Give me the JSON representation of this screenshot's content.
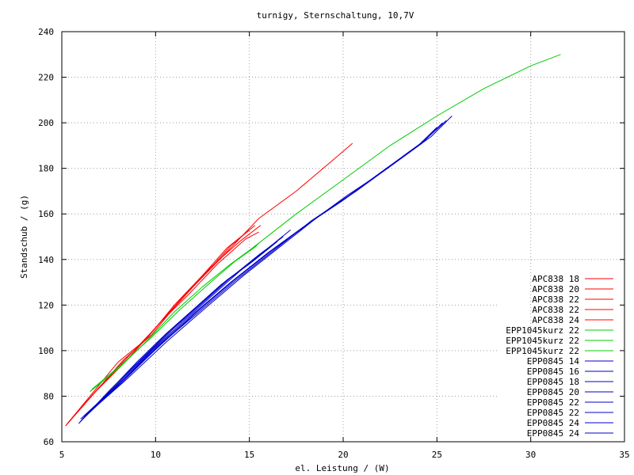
{
  "chart_data": {
    "type": "line",
    "title": "turnigy, Sternschaltung, 10,7V",
    "xlabel": "el. Leistung / (W)",
    "ylabel": "Standschub / (g)",
    "xlim": [
      5,
      35
    ],
    "ylim": [
      60,
      240
    ],
    "xticks": [
      5,
      10,
      15,
      20,
      25,
      30,
      35
    ],
    "yticks": [
      60,
      80,
      100,
      120,
      140,
      160,
      180,
      200,
      220,
      240
    ],
    "grid": true,
    "legend_position": "bottom-right",
    "colors": {
      "APC": "#ff0000",
      "EPP1045kurz": "#00cc00",
      "EPP0845": "#0000cc"
    },
    "series": [
      {
        "name": "APC838 18",
        "color": "#ff0000",
        "x": [
          5.2,
          6.5,
          8.0,
          9.5,
          11.0,
          12.5,
          13.8,
          15.0
        ],
        "y": [
          67,
          80,
          95,
          105,
          120,
          133,
          145,
          153
        ]
      },
      {
        "name": "APC838 20",
        "color": "#ff0000",
        "x": [
          5.3,
          6.8,
          8.3,
          9.8,
          11.3,
          12.8,
          14.0,
          15.3
        ],
        "y": [
          68,
          82,
          96,
          107,
          122,
          135,
          146,
          155
        ]
      },
      {
        "name": "APC838 22",
        "color": "#ff0000",
        "x": [
          5.4,
          7.0,
          8.5,
          10.0,
          11.5,
          13.0,
          14.5,
          15.6
        ],
        "y": [
          69,
          84,
          97,
          110,
          124,
          137,
          148,
          155
        ]
      },
      {
        "name": "APC838 22",
        "color": "#ff0000",
        "x": [
          5.3,
          6.9,
          8.6,
          10.2,
          11.8,
          13.3,
          14.8,
          15.5
        ],
        "y": [
          68,
          83,
          97,
          112,
          125,
          138,
          149,
          152
        ]
      },
      {
        "name": "APC838 24",
        "color": "#ff0000",
        "x": [
          5.2,
          6.8,
          8.5,
          10.0,
          12.0,
          14.0,
          15.5,
          17.5,
          19.5,
          20.5
        ],
        "y": [
          67,
          82,
          96,
          110,
          128,
          145,
          158,
          170,
          184,
          191
        ]
      },
      {
        "name": "EPP1045kurz 22",
        "color": "#00cc00",
        "x": [
          6.5,
          8.0,
          9.5,
          11.0,
          12.5,
          14.0,
          15.5
        ],
        "y": [
          82,
          92,
          104,
          117,
          128,
          138,
          147
        ]
      },
      {
        "name": "EPP1045kurz 22",
        "color": "#00cc00",
        "x": [
          6.6,
          8.2,
          9.8,
          11.3,
          12.8,
          14.2,
          15.4
        ],
        "y": [
          83,
          94,
          106,
          118,
          129,
          139,
          146
        ]
      },
      {
        "name": "EPP1045kurz 22",
        "color": "#00cc00",
        "x": [
          15.0,
          17.5,
          20.0,
          22.5,
          25.0,
          27.5,
          30.0,
          31.6
        ],
        "y": [
          144,
          160,
          175,
          190,
          203,
          215,
          225,
          230
        ]
      },
      {
        "name": "EPP0845 14",
        "color": "#0000cc",
        "x": [
          5.9,
          7.5,
          9.0,
          10.5,
          12.0,
          13.5,
          15.0,
          16.2
        ],
        "y": [
          68,
          82,
          95,
          107,
          118,
          129,
          138,
          146
        ]
      },
      {
        "name": "EPP0845 16",
        "color": "#0000cc",
        "x": [
          6.0,
          7.6,
          9.2,
          10.8,
          12.3,
          13.8,
          15.3,
          16.5
        ],
        "y": [
          69,
          83,
          96,
          109,
          120,
          131,
          140,
          148
        ]
      },
      {
        "name": "EPP0845 18",
        "color": "#0000cc",
        "x": [
          6.1,
          7.8,
          9.5,
          11.0,
          12.5,
          14.0,
          15.5,
          16.8
        ],
        "y": [
          70,
          84,
          98,
          110,
          121,
          132,
          142,
          150
        ]
      },
      {
        "name": "EPP0845 20",
        "color": "#0000cc",
        "x": [
          6.2,
          8.0,
          9.8,
          11.5,
          13.0,
          14.5,
          16.0,
          17.2
        ],
        "y": [
          71,
          85,
          100,
          113,
          124,
          135,
          145,
          153
        ]
      },
      {
        "name": "EPP0845 22",
        "color": "#0000cc",
        "x": [
          6.0,
          8.0,
          10.0,
          12.0,
          14.0,
          16.0,
          18.0,
          20.0,
          22.0,
          24.0,
          25.0
        ],
        "y": [
          69,
          85,
          101,
          116,
          130,
          143,
          155,
          166,
          178,
          190,
          198
        ]
      },
      {
        "name": "EPP0845 22",
        "color": "#0000cc",
        "x": [
          6.1,
          8.2,
          10.3,
          12.3,
          14.3,
          16.3,
          18.3,
          20.3,
          22.3,
          24.3,
          25.5
        ],
        "y": [
          70,
          86,
          103,
          117,
          131,
          144,
          157,
          168,
          180,
          192,
          201
        ]
      },
      {
        "name": "EPP0845 24",
        "color": "#0000cc",
        "x": [
          6.2,
          8.4,
          10.6,
          12.7,
          14.7,
          16.7,
          18.7,
          20.7,
          22.7,
          24.7,
          25.8
        ],
        "y": [
          71,
          87,
          104,
          119,
          133,
          146,
          159,
          170,
          182,
          194,
          203
        ]
      },
      {
        "name": "EPP0845 24",
        "color": "#0000cc",
        "x": [
          6.0,
          8.1,
          10.2,
          12.2,
          14.2,
          16.2,
          18.2,
          20.2,
          22.2,
          24.2,
          25.3
        ],
        "y": [
          70,
          86,
          102,
          117,
          131,
          144,
          156,
          168,
          179,
          191,
          200
        ]
      }
    ]
  }
}
